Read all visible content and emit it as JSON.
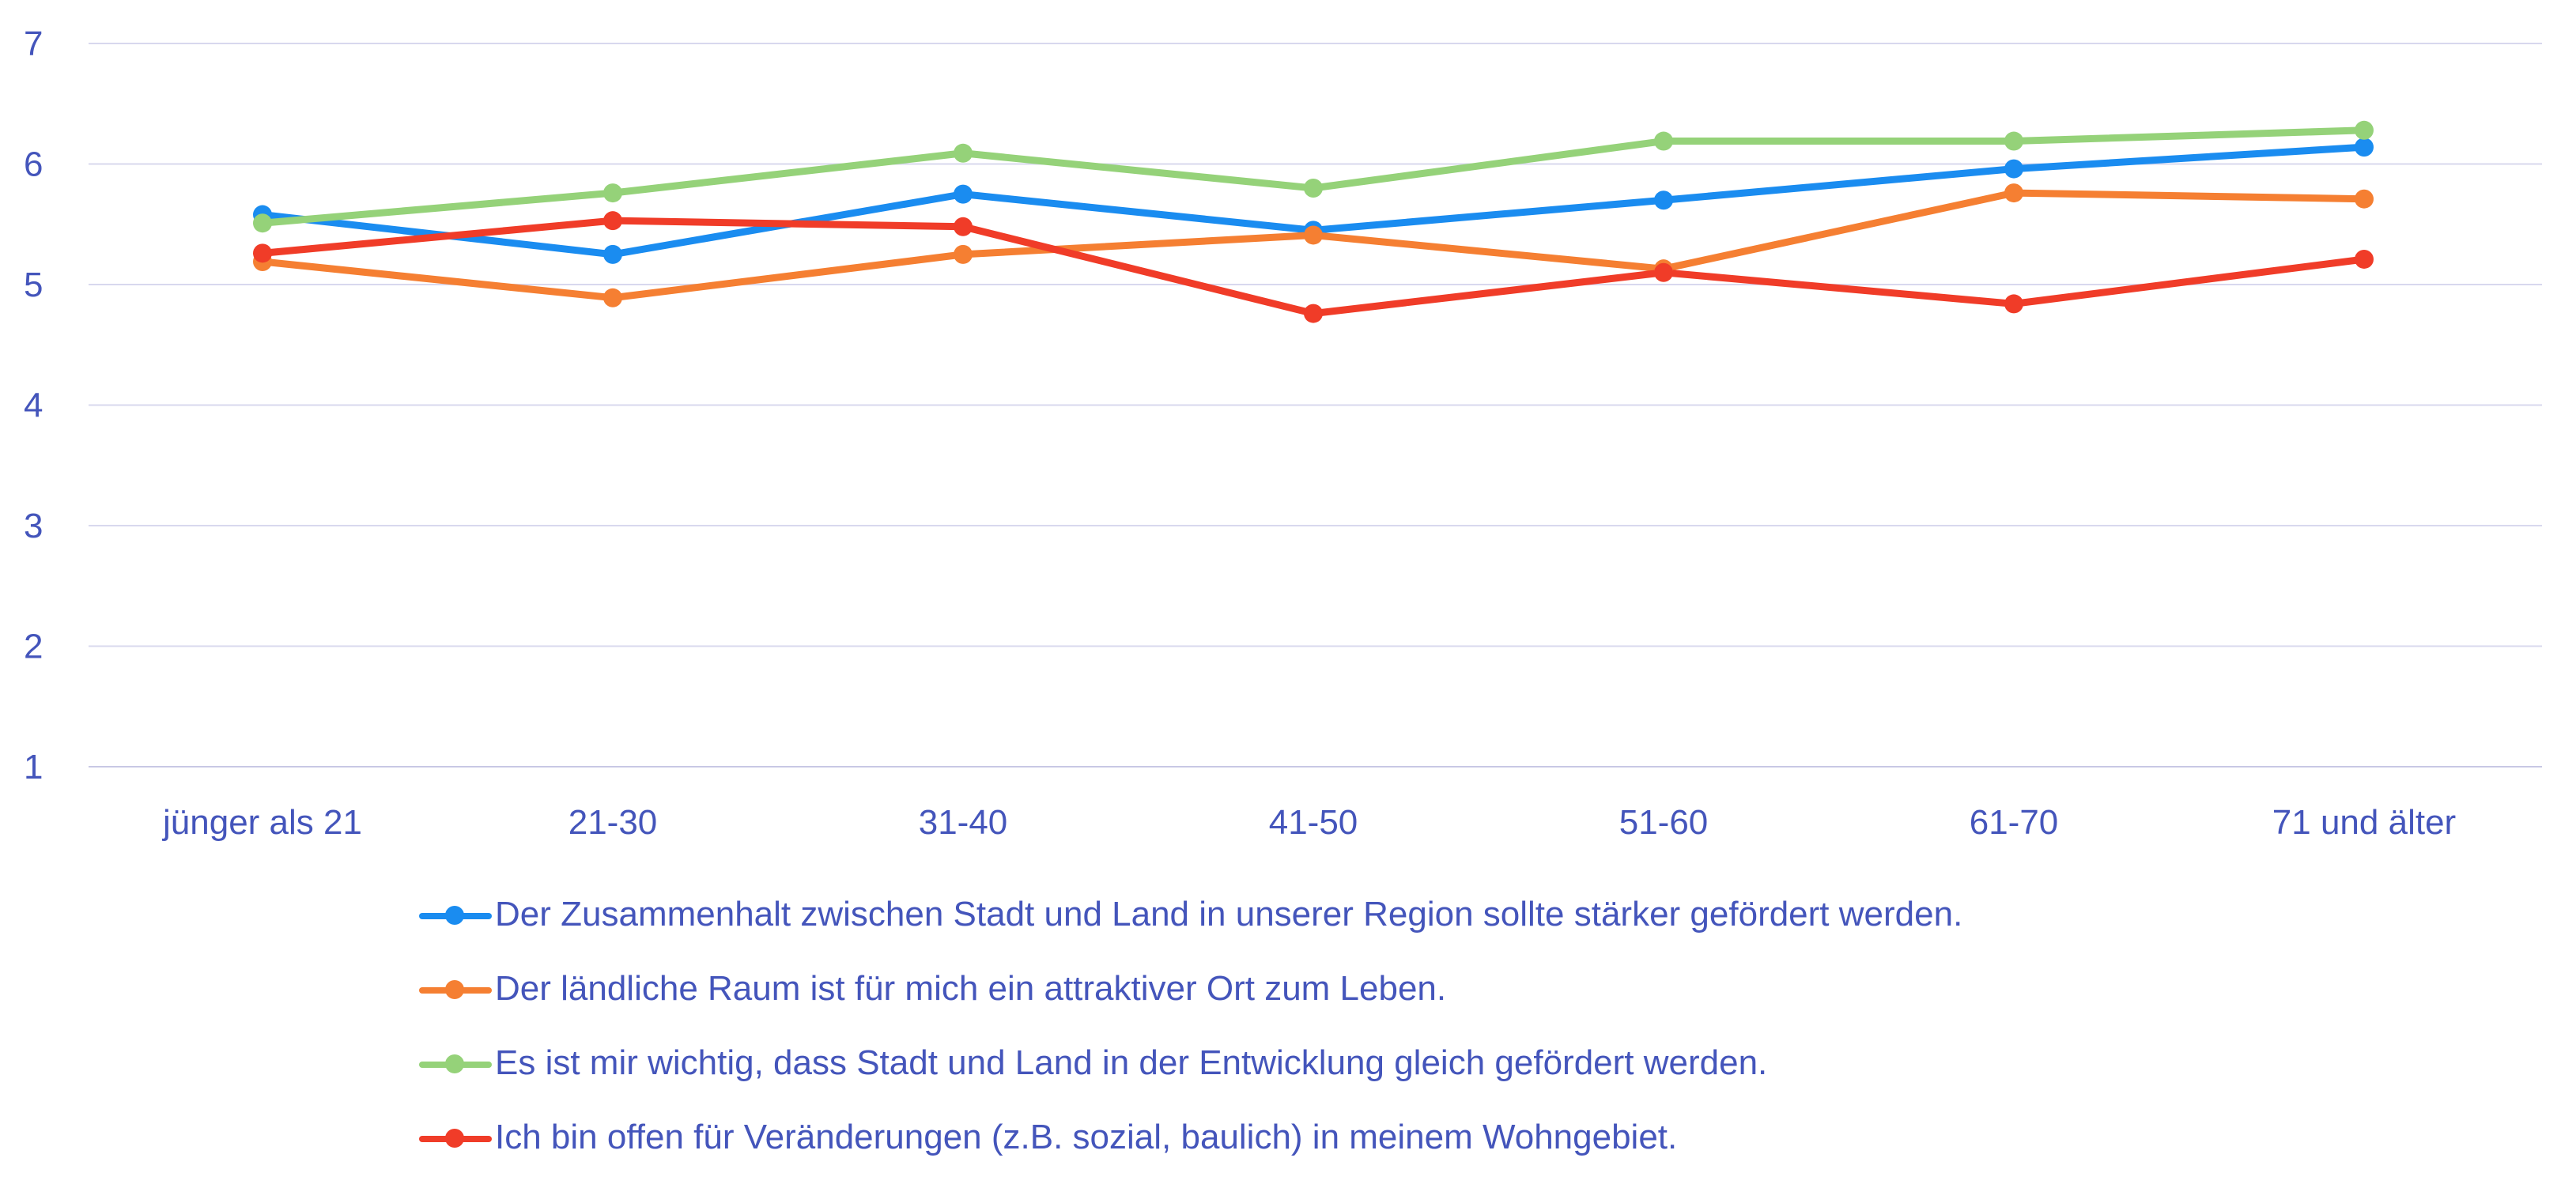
{
  "colors": {
    "text": "#4455bb",
    "grid": "#d8d8ee",
    "axis": "#c8c8e4"
  },
  "chart_data": {
    "type": "line",
    "title": "",
    "xlabel": "",
    "ylabel": "",
    "categories": [
      "jünger als 21",
      "21-30",
      "31-40",
      "41-50",
      "51-60",
      "61-70",
      "71 und älter"
    ],
    "ylim": [
      1,
      7
    ],
    "yticks": [
      "1",
      "2",
      "3",
      "4",
      "5",
      "6",
      "7"
    ],
    "grid": true,
    "legend_position": "bottom",
    "series": [
      {
        "name": "Der Zusammenhalt zwischen Stadt und Land in unserer Region sollte stärker gefördert werden.",
        "color": "#1a8cf0",
        "values": [
          5.58,
          5.25,
          5.75,
          5.45,
          5.7,
          5.96,
          6.14
        ]
      },
      {
        "name": "Der ländliche Raum ist für mich ein attraktiver Ort zum Leben.",
        "color": "#f57f32",
        "values": [
          5.19,
          4.89,
          5.25,
          5.41,
          5.13,
          5.76,
          5.71
        ]
      },
      {
        "name": "Es ist mir wichtig, dass Stadt und Land in der Entwicklung gleich gefördert werden.",
        "color": "#95d279",
        "values": [
          5.51,
          5.76,
          6.09,
          5.8,
          6.19,
          6.19,
          6.28
        ]
      },
      {
        "name": "Ich bin offen für Veränderungen (z.B. sozial, baulich) in meinem Wohngebiet.",
        "color": "#f03c28",
        "values": [
          5.26,
          5.53,
          5.48,
          4.76,
          5.1,
          4.84,
          5.21
        ]
      }
    ]
  }
}
